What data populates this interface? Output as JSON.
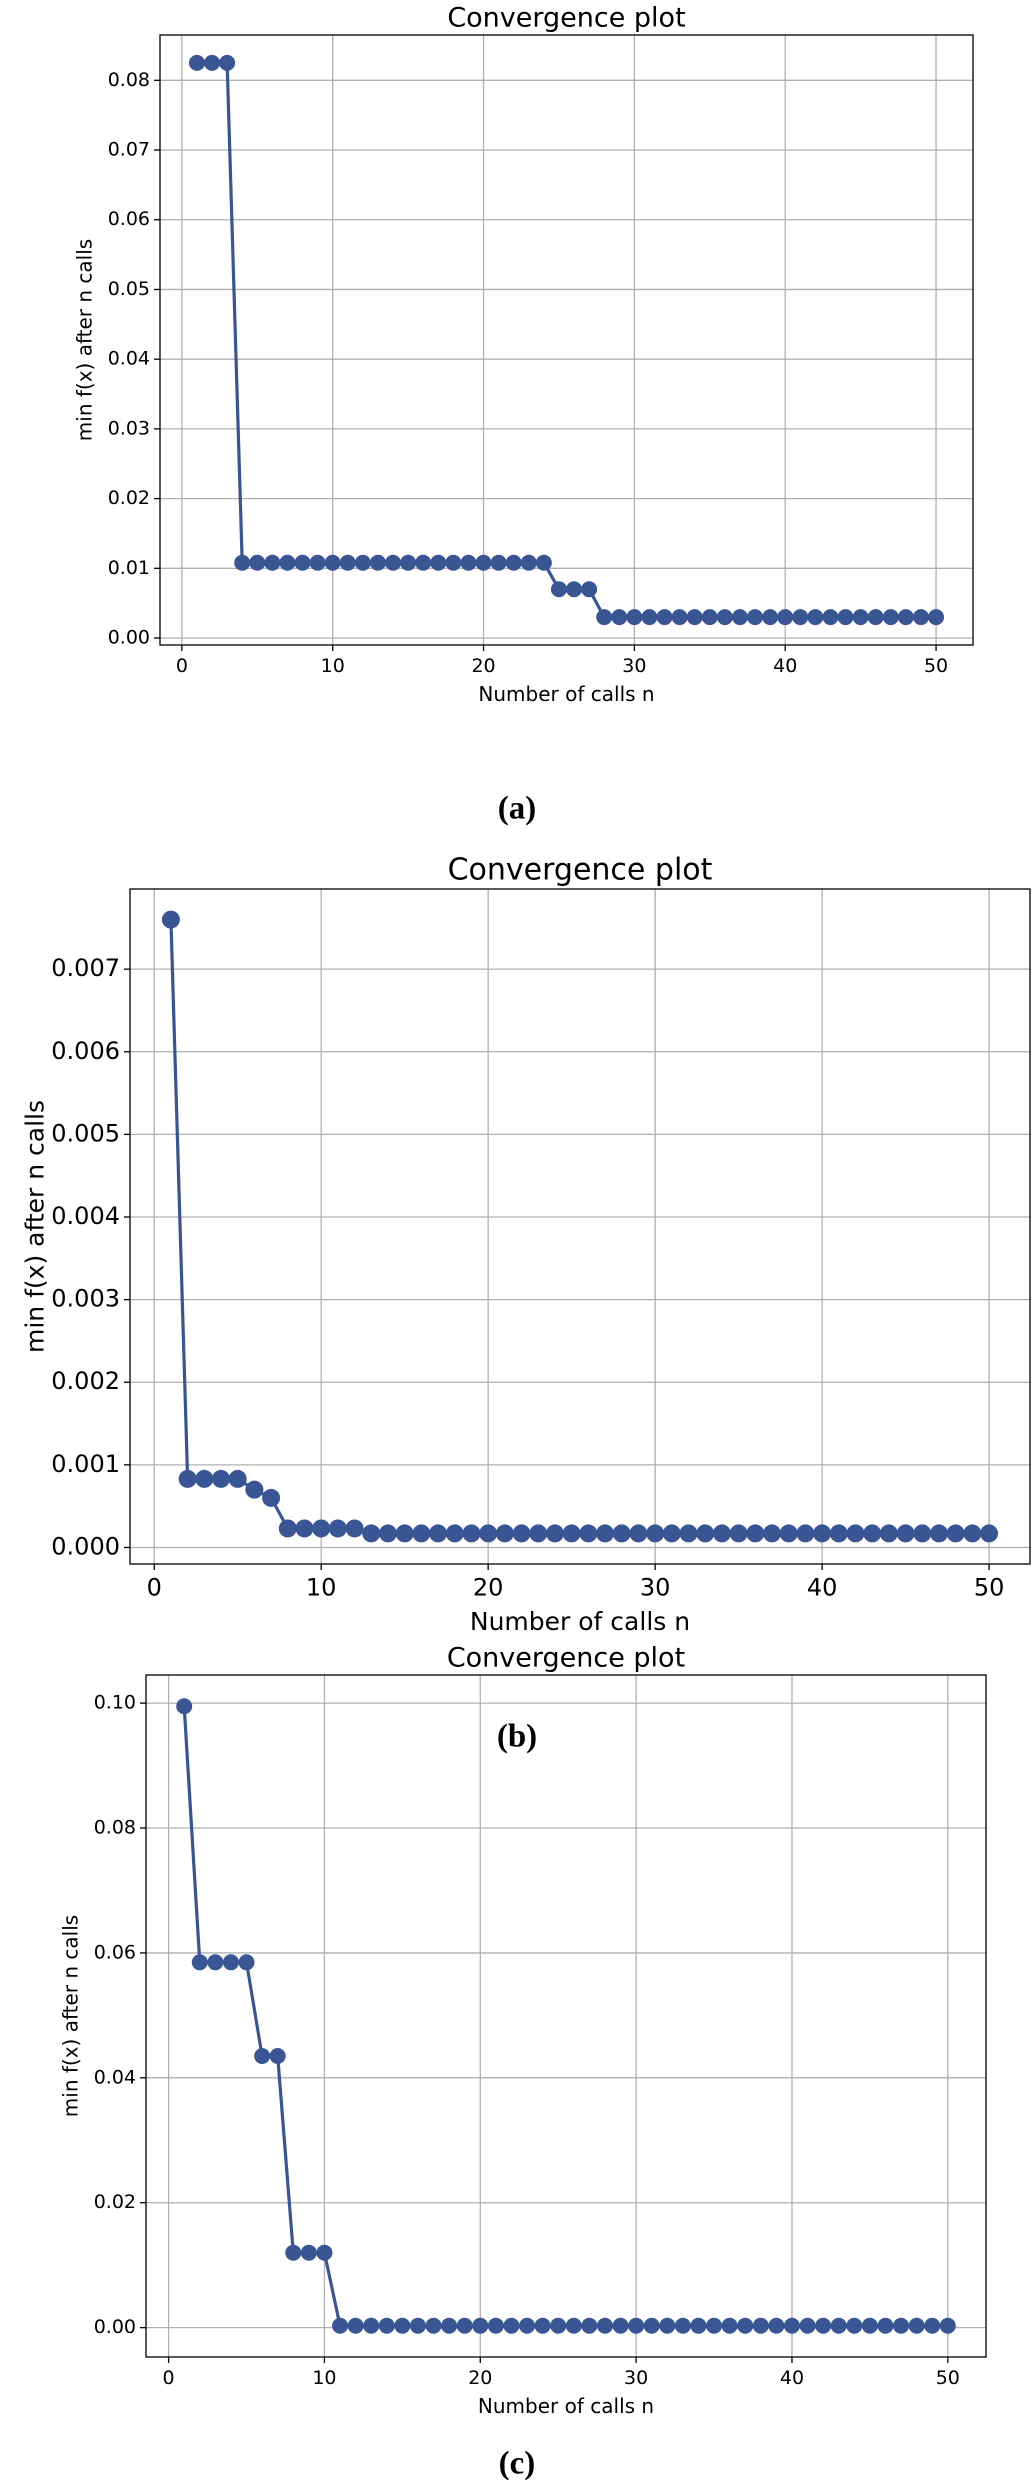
{
  "chart_data": [
    {
      "type": "line",
      "title": "Convergence plot",
      "xlabel": "Number of calls n",
      "ylabel": "min f(x) after n calls",
      "caption": "(a)",
      "color": "#3a5594",
      "grid": true,
      "x": [
        1,
        2,
        3,
        4,
        5,
        6,
        7,
        8,
        9,
        10,
        11,
        12,
        13,
        14,
        15,
        16,
        17,
        18,
        19,
        20,
        21,
        22,
        23,
        24,
        25,
        26,
        27,
        28,
        29,
        30,
        31,
        32,
        33,
        34,
        35,
        36,
        37,
        38,
        39,
        40,
        41,
        42,
        43,
        44,
        45,
        46,
        47,
        48,
        49,
        50
      ],
      "values": [
        0.0825,
        0.0825,
        0.0825,
        0.0108,
        0.0108,
        0.0108,
        0.0108,
        0.0108,
        0.0108,
        0.0108,
        0.0108,
        0.0108,
        0.0108,
        0.0108,
        0.0108,
        0.0108,
        0.0108,
        0.0108,
        0.0108,
        0.0108,
        0.0108,
        0.0108,
        0.0108,
        0.0108,
        0.007,
        0.007,
        0.007,
        0.003,
        0.003,
        0.003,
        0.003,
        0.003,
        0.003,
        0.003,
        0.003,
        0.003,
        0.003,
        0.003,
        0.003,
        0.003,
        0.003,
        0.003,
        0.003,
        0.003,
        0.003,
        0.003,
        0.003,
        0.003,
        0.003,
        0.003
      ],
      "xlim": [
        -1.45,
        52.45
      ],
      "xticks": [
        0,
        10,
        20,
        30,
        40,
        50
      ],
      "ylim": [
        -0.001,
        0.0865
      ],
      "yticks": [
        {
          "value": 0,
          "label": "0.00"
        },
        {
          "value": 0.01,
          "label": "0.01"
        },
        {
          "value": 0.02,
          "label": "0.02"
        },
        {
          "value": 0.03,
          "label": "0.03"
        },
        {
          "value": 0.04,
          "label": "0.04"
        },
        {
          "value": 0.05,
          "label": "0.05"
        },
        {
          "value": 0.06,
          "label": "0.06"
        },
        {
          "value": 0.07,
          "label": "0.07"
        },
        {
          "value": 0.08,
          "label": "0.08"
        }
      ]
    },
    {
      "type": "line",
      "title": "Convergence plot",
      "xlabel": "Number of calls n",
      "ylabel": "min f(x) after n calls",
      "caption": "(b)",
      "color": "#3a5594",
      "grid": true,
      "x": [
        1,
        2,
        3,
        4,
        5,
        6,
        7,
        8,
        9,
        10,
        11,
        12,
        13,
        14,
        15,
        16,
        17,
        18,
        19,
        20,
        21,
        22,
        23,
        24,
        25,
        26,
        27,
        28,
        29,
        30,
        31,
        32,
        33,
        34,
        35,
        36,
        37,
        38,
        39,
        40,
        41,
        42,
        43,
        44,
        45,
        46,
        47,
        48,
        49,
        50
      ],
      "values": [
        0.0076,
        0.00083,
        0.00083,
        0.00083,
        0.00083,
        0.0007,
        0.0006,
        0.00023,
        0.00023,
        0.00023,
        0.00023,
        0.00023,
        0.00017,
        0.00017,
        0.00017,
        0.00017,
        0.00017,
        0.00017,
        0.00017,
        0.00017,
        0.00017,
        0.00017,
        0.00017,
        0.00017,
        0.00017,
        0.00017,
        0.00017,
        0.00017,
        0.00017,
        0.00017,
        0.00017,
        0.00017,
        0.00017,
        0.00017,
        0.00017,
        0.00017,
        0.00017,
        0.00017,
        0.00017,
        0.00017,
        0.00017,
        0.00017,
        0.00017,
        0.00017,
        0.00017,
        0.00017,
        0.00017,
        0.00017,
        0.00017,
        0.00017
      ],
      "xlim": [
        -1.45,
        52.45
      ],
      "xticks": [
        0,
        10,
        20,
        30,
        40,
        50
      ],
      "ylim": [
        -0.0002,
        0.00797
      ],
      "yticks": [
        {
          "value": 0,
          "label": "0.000"
        },
        {
          "value": 0.001,
          "label": "0.001"
        },
        {
          "value": 0.002,
          "label": "0.002"
        },
        {
          "value": 0.003,
          "label": "0.003"
        },
        {
          "value": 0.004,
          "label": "0.004"
        },
        {
          "value": 0.005,
          "label": "0.005"
        },
        {
          "value": 0.006,
          "label": "0.006"
        },
        {
          "value": 0.007,
          "label": "0.007"
        }
      ]
    },
    {
      "type": "line",
      "title": "Convergence plot",
      "xlabel": "Number of calls n",
      "ylabel": "min f(x) after n calls",
      "caption": "(c)",
      "color": "#3a5594",
      "grid": true,
      "x": [
        1,
        2,
        3,
        4,
        5,
        6,
        7,
        8,
        9,
        10,
        11,
        12,
        13,
        14,
        15,
        16,
        17,
        18,
        19,
        20,
        21,
        22,
        23,
        24,
        25,
        26,
        27,
        28,
        29,
        30,
        31,
        32,
        33,
        34,
        35,
        36,
        37,
        38,
        39,
        40,
        41,
        42,
        43,
        44,
        45,
        46,
        47,
        48,
        49,
        50
      ],
      "values": [
        0.0995,
        0.0585,
        0.0585,
        0.0585,
        0.0585,
        0.0435,
        0.0435,
        0.012,
        0.012,
        0.012,
        0.0003,
        0.0003,
        0.0003,
        0.0003,
        0.0003,
        0.0003,
        0.0003,
        0.0003,
        0.0003,
        0.0003,
        0.0003,
        0.0003,
        0.0003,
        0.0003,
        0.0003,
        0.0003,
        0.0003,
        0.0003,
        0.0003,
        0.0003,
        0.0003,
        0.0003,
        0.0003,
        0.0003,
        0.0003,
        0.0003,
        0.0003,
        0.0003,
        0.0003,
        0.0003,
        0.0003,
        0.0003,
        0.0003,
        0.0003,
        0.0003,
        0.0003,
        0.0003,
        0.0003,
        0.0003,
        0.0003
      ],
      "xlim": [
        -1.45,
        52.45
      ],
      "xticks": [
        0,
        10,
        20,
        30,
        40,
        50
      ],
      "ylim": [
        -0.0047,
        0.1045
      ],
      "yticks": [
        {
          "value": 0,
          "label": "0.00"
        },
        {
          "value": 0.02,
          "label": "0.02"
        },
        {
          "value": 0.04,
          "label": "0.04"
        },
        {
          "value": 0.06,
          "label": "0.06"
        },
        {
          "value": 0.08,
          "label": "0.08"
        },
        {
          "value": 0.1,
          "label": "0.10"
        }
      ]
    }
  ]
}
